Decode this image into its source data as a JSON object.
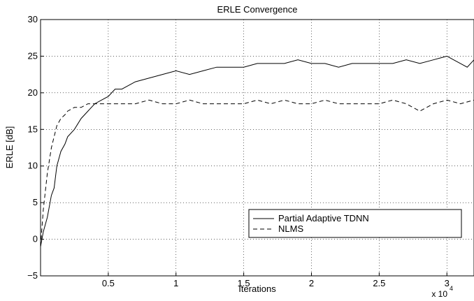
{
  "chart_data": {
    "type": "line",
    "title": "ERLE Convergence",
    "xlabel": "Iterations",
    "ylabel": "ERLE [dB]",
    "x_multiplier_label": "x 10",
    "x_multiplier_exponent": "4",
    "xlim": [
      0,
      3.2
    ],
    "ylim": [
      -5,
      30
    ],
    "xticks": [
      0.5,
      1,
      1.5,
      2,
      2.5,
      3
    ],
    "xtick_labels": [
      "0.5",
      "1",
      "1.5",
      "2",
      "2.5",
      "3"
    ],
    "yticks": [
      -5,
      0,
      5,
      10,
      15,
      20,
      25,
      30
    ],
    "ytick_labels": [
      "−5",
      "0",
      "5",
      "10",
      "15",
      "20",
      "25",
      "30"
    ],
    "grid": true,
    "legend_position": "lower-right",
    "series": [
      {
        "name": "Partial Adaptive TDNN",
        "style": "solid",
        "x": [
          0,
          0.02,
          0.05,
          0.08,
          0.1,
          0.12,
          0.15,
          0.18,
          0.2,
          0.25,
          0.3,
          0.35,
          0.4,
          0.45,
          0.5,
          0.55,
          0.6,
          0.7,
          0.8,
          0.9,
          1.0,
          1.1,
          1.2,
          1.3,
          1.4,
          1.5,
          1.6,
          1.7,
          1.8,
          1.9,
          2.0,
          2.1,
          2.2,
          2.3,
          2.4,
          2.5,
          2.6,
          2.7,
          2.8,
          2.9,
          3.0,
          3.05,
          3.1,
          3.15,
          3.2
        ],
        "values": [
          -1,
          1,
          3,
          6,
          7,
          10,
          12,
          13,
          14,
          15,
          16.5,
          17.5,
          18.5,
          19,
          19.5,
          20.5,
          20.5,
          21.5,
          22,
          22.5,
          23,
          22.5,
          23,
          23.5,
          23.5,
          23.5,
          24,
          24,
          24,
          24.5,
          24,
          24,
          23.5,
          24,
          24,
          24,
          24,
          24.5,
          24,
          24.5,
          25,
          24.5,
          24,
          23.5,
          24.5
        ]
      },
      {
        "name": "NLMS",
        "style": "dashed",
        "x": [
          0,
          0.02,
          0.05,
          0.08,
          0.1,
          0.12,
          0.15,
          0.18,
          0.2,
          0.25,
          0.3,
          0.35,
          0.4,
          0.45,
          0.5,
          0.6,
          0.7,
          0.8,
          0.9,
          1.0,
          1.1,
          1.2,
          1.3,
          1.4,
          1.5,
          1.6,
          1.7,
          1.8,
          1.9,
          2.0,
          2.1,
          2.2,
          2.3,
          2.4,
          2.5,
          2.6,
          2.7,
          2.8,
          2.9,
          3.0,
          3.1,
          3.2
        ],
        "values": [
          -1,
          4,
          9,
          12.5,
          14,
          15.5,
          16.5,
          17,
          17.5,
          18,
          18,
          18.5,
          18.5,
          18.5,
          18.5,
          18.5,
          18.5,
          19,
          18.5,
          18.5,
          19,
          18.5,
          18.5,
          18.5,
          18.5,
          19,
          18.5,
          19,
          18.5,
          18.5,
          19,
          18.5,
          18.5,
          18.5,
          18.5,
          19,
          18.5,
          17.5,
          18.5,
          19,
          18.5,
          19
        ]
      }
    ]
  }
}
